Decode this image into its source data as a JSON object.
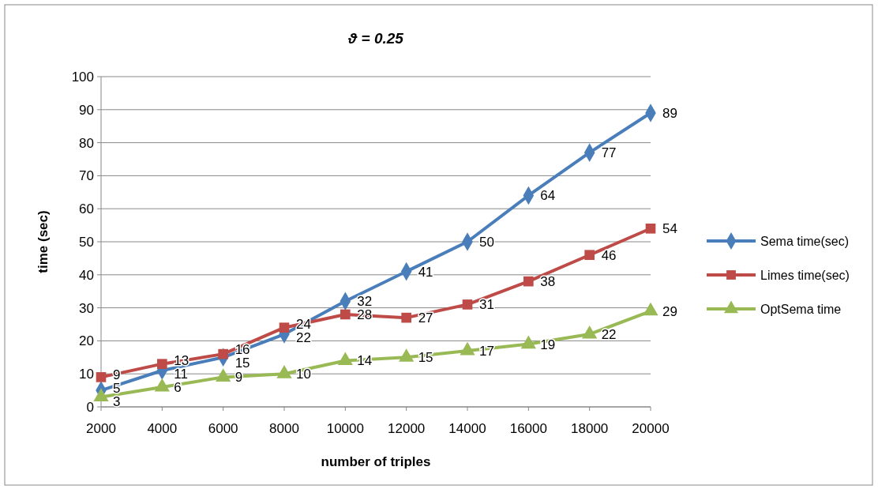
{
  "chart_data": {
    "type": "line",
    "title": "ϑ = 0.25",
    "xlabel": "number of triples",
    "ylabel": "time (sec)",
    "x": [
      2000,
      4000,
      6000,
      8000,
      10000,
      12000,
      14000,
      16000,
      18000,
      20000
    ],
    "xlim": [
      2000,
      20000
    ],
    "xticks": [
      2000,
      4000,
      6000,
      8000,
      10000,
      12000,
      14000,
      16000,
      18000,
      20000
    ],
    "ylim": [
      0,
      100
    ],
    "yticks": [
      0,
      10,
      20,
      30,
      40,
      50,
      60,
      70,
      80,
      90,
      100
    ],
    "grid": "y",
    "legend": "right",
    "data_labels": true,
    "line_style": "solid",
    "series": [
      {
        "name": "Sema time(sec)",
        "color": "#4a7ebb",
        "marker": "diamond",
        "values": [
          5,
          11,
          15,
          22,
          32,
          41,
          50,
          64,
          77,
          89
        ]
      },
      {
        "name": "Limes time(sec)",
        "color": "#be4b48",
        "marker": "square",
        "values": [
          9,
          13,
          16,
          24,
          28,
          27,
          31,
          38,
          46,
          54
        ]
      },
      {
        "name": "OptSema time",
        "color": "#98b954",
        "marker": "triangle",
        "values": [
          3,
          6,
          9,
          10,
          14,
          15,
          17,
          19,
          22,
          29
        ]
      }
    ]
  }
}
